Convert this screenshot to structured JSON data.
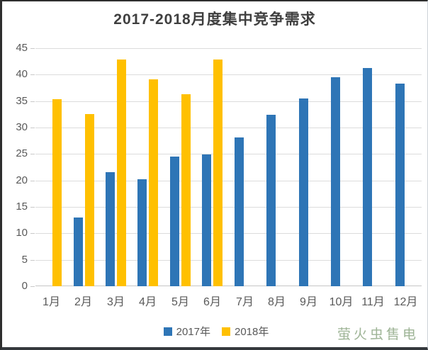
{
  "title": "2017-2018月度集中竞争需求",
  "watermark": "萤火虫售电",
  "colors": {
    "series2017": "#2e75b6",
    "series2018": "#ffc000",
    "gridline": "#dcdcdc",
    "axis_text": "#595959",
    "title_text": "#3f3f3f",
    "watermark_text": "#9eb496"
  },
  "legend": [
    {
      "label": "2017年",
      "color": "#2e75b6"
    },
    {
      "label": "2018年",
      "color": "#ffc000"
    }
  ],
  "chart_data": {
    "type": "bar",
    "title": "2017-2018月度集中竞争需求",
    "categories": [
      "1月",
      "2月",
      "3月",
      "4月",
      "5月",
      "6月",
      "7月",
      "8月",
      "9月",
      "10月",
      "11月",
      "12月"
    ],
    "series": [
      {
        "name": "2017年",
        "color_key": "series2017",
        "values": [
          null,
          13,
          21.6,
          20.2,
          24.5,
          24.9,
          28.1,
          32.4,
          35.5,
          39.5,
          41.2,
          38.3
        ]
      },
      {
        "name": "2018年",
        "color_key": "series2018",
        "values": [
          35.3,
          32.6,
          42.8,
          39.1,
          36.3,
          42.8,
          null,
          null,
          null,
          null,
          null,
          null
        ]
      }
    ],
    "xlabel": "",
    "ylabel": "",
    "ylim": [
      0,
      45
    ],
    "yticks": [
      0,
      5,
      10,
      15,
      20,
      25,
      30,
      35,
      40,
      45
    ],
    "grid": true,
    "legend_position": "bottom"
  }
}
